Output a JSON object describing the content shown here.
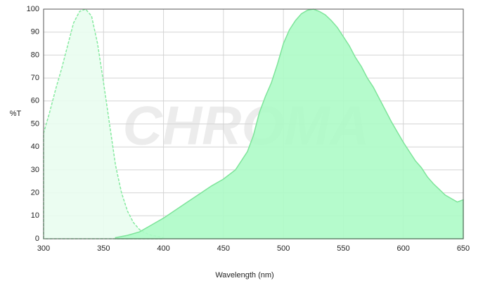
{
  "chart_data": {
    "type": "area",
    "watermark": "CHROMA",
    "x_label": "Wavelength (nm)",
    "y_label": "%T",
    "xlim": [
      300,
      650
    ],
    "ylim": [
      0,
      100
    ],
    "xticks": [
      300,
      350,
      400,
      450,
      500,
      550,
      600,
      650
    ],
    "yticks": [
      0,
      10,
      20,
      30,
      40,
      50,
      60,
      70,
      80,
      90,
      100
    ],
    "grid": true,
    "series": [
      {
        "color": "#86eaa0",
        "fill": "#e9fdef",
        "dashed": true,
        "x": [
          300,
          305,
          310,
          315,
          320,
          325,
          330,
          335,
          340,
          345,
          350,
          355,
          360,
          365,
          370,
          375,
          380,
          385,
          390,
          395,
          400
        ],
        "values": [
          46,
          55,
          65,
          74,
          84,
          94,
          99,
          100,
          97,
          85,
          68,
          50,
          32,
          20,
          12,
          7,
          4,
          2.5,
          1.5,
          1,
          0.5
        ]
      },
      {
        "color": "#7ee49a",
        "fill": "#adfbc6",
        "dashed": false,
        "x": [
          360,
          370,
          380,
          390,
          400,
          410,
          420,
          430,
          440,
          450,
          460,
          470,
          475,
          480,
          485,
          490,
          495,
          500,
          505,
          510,
          515,
          520,
          525,
          530,
          535,
          540,
          545,
          550,
          555,
          560,
          565,
          570,
          575,
          580,
          585,
          590,
          595,
          600,
          605,
          610,
          615,
          620,
          625,
          630,
          635,
          640,
          645,
          650
        ],
        "values": [
          0.5,
          1.5,
          3,
          6,
          9,
          12.5,
          16,
          19.5,
          23,
          26,
          30,
          38,
          45,
          55,
          62,
          68,
          76,
          85,
          91,
          95,
          98,
          99.5,
          100,
          99,
          97.5,
          95,
          92,
          88,
          84,
          79,
          75,
          70,
          66,
          61,
          56,
          51,
          46.5,
          42,
          38,
          34,
          31,
          27,
          24,
          21.5,
          19,
          17.5,
          16,
          17
        ]
      }
    ]
  }
}
